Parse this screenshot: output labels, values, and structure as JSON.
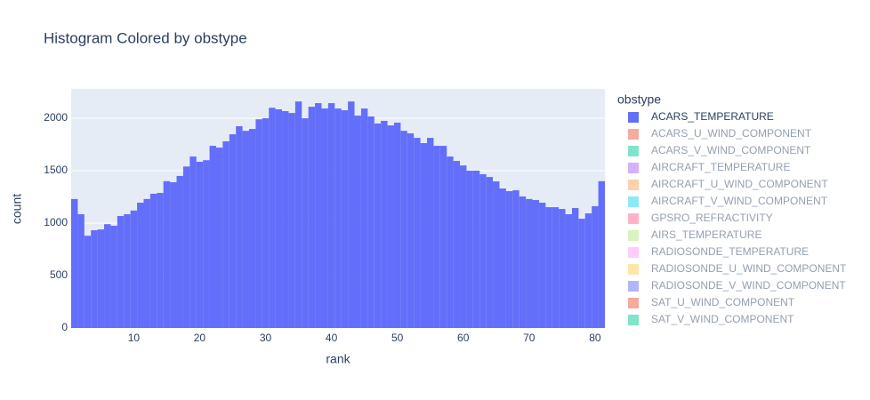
{
  "chart_data": {
    "type": "histogram",
    "title": "Histogram Colored by obstype",
    "x_label": "rank",
    "y_label": "count",
    "legend_title": "obstype",
    "bins": [
      0.5,
      1.5,
      2.5,
      3.5,
      4.5,
      5.5,
      6.5,
      7.5,
      8.5,
      9.5,
      10.5,
      11.5,
      12.5,
      13.5,
      14.5,
      15.5,
      16.5,
      17.5,
      18.5,
      19.5,
      20.5,
      21.5,
      22.5,
      23.5,
      24.5,
      25.5,
      26.5,
      27.5,
      28.5,
      29.5,
      30.5,
      31.5,
      32.5,
      33.5,
      34.5,
      35.5,
      36.5,
      37.5,
      38.5,
      39.5,
      40.5,
      41.5,
      42.5,
      43.5,
      44.5,
      45.5,
      46.5,
      47.5,
      48.5,
      49.5,
      50.5,
      51.5,
      52.5,
      53.5,
      54.5,
      55.5,
      56.5,
      57.5,
      58.5,
      59.5,
      60.5,
      61.5,
      62.5,
      63.5,
      64.5,
      65.5,
      66.5,
      67.5,
      68.5,
      69.5,
      70.5,
      71.5,
      72.5,
      73.5,
      74.5,
      75.5,
      76.5,
      77.5,
      78.5,
      79.5,
      80.5,
      81.5
    ],
    "series": [
      {
        "name": "ACARS_TEMPERATURE",
        "color": "#636efa",
        "visible": true,
        "values": [
          1230,
          1085,
          880,
          932,
          940,
          990,
          975,
          1068,
          1085,
          1120,
          1195,
          1230,
          1280,
          1288,
          1400,
          1390,
          1450,
          1540,
          1635,
          1585,
          1600,
          1737,
          1720,
          1780,
          1847,
          1924,
          1880,
          1898,
          1990,
          2000,
          2100,
          2085,
          2068,
          2050,
          2160,
          2000,
          2110,
          2144,
          2093,
          2144,
          2093,
          2076,
          2160,
          2025,
          2093,
          2017,
          1950,
          1975,
          1932,
          1958,
          1880,
          1856,
          1813,
          1763,
          1813,
          1737,
          1737,
          1635,
          1593,
          1550,
          1500,
          1500,
          1466,
          1440,
          1398,
          1330,
          1305,
          1313,
          1254,
          1230,
          1220,
          1195,
          1152,
          1152,
          1135,
          1085,
          1144,
          1042,
          1093,
          1161,
          1400
        ]
      },
      {
        "name": "ACARS_U_WIND_COMPONENT",
        "color": "#EF553B",
        "visible": false
      },
      {
        "name": "ACARS_V_WIND_COMPONENT",
        "color": "#00cc96",
        "visible": false
      },
      {
        "name": "AIRCRAFT_TEMPERATURE",
        "color": "#ab63fa",
        "visible": false
      },
      {
        "name": "AIRCRAFT_U_WIND_COMPONENT",
        "color": "#FFA15A",
        "visible": false
      },
      {
        "name": "AIRCRAFT_V_WIND_COMPONENT",
        "color": "#19d3f3",
        "visible": false
      },
      {
        "name": "GPSRO_REFRACTIVITY",
        "color": "#FF6692",
        "visible": false
      },
      {
        "name": "AIRS_TEMPERATURE",
        "color": "#B6E880",
        "visible": false
      },
      {
        "name": "RADIOSONDE_TEMPERATURE",
        "color": "#FF97FF",
        "visible": false
      },
      {
        "name": "RADIOSONDE_U_WIND_COMPONENT",
        "color": "#FECB52",
        "visible": false
      },
      {
        "name": "RADIOSONDE_V_WIND_COMPONENT",
        "color": "#636efa",
        "visible": false
      },
      {
        "name": "SAT_U_WIND_COMPONENT",
        "color": "#EF553B",
        "visible": false
      },
      {
        "name": "SAT_V_WIND_COMPONENT",
        "color": "#00cc96",
        "visible": false
      }
    ],
    "xlim": [
      0.5,
      81.5
    ],
    "xticks": [
      10,
      20,
      30,
      40,
      50,
      60,
      70,
      80
    ],
    "ylim": [
      0,
      2280
    ],
    "yticks": [
      0,
      500,
      1000,
      1500,
      2000
    ],
    "grid": true,
    "legend": "right"
  }
}
